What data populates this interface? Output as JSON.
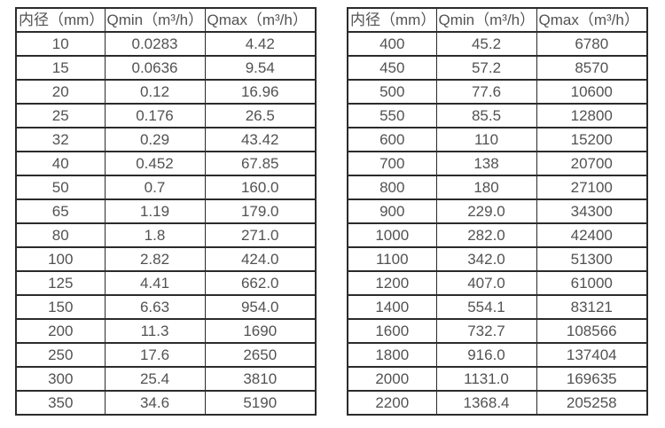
{
  "colors": {
    "border": "#2b2b2b",
    "text": "#525252",
    "background": "#ffffff"
  },
  "tables": [
    {
      "name": "flow-spec-table-small-diameters",
      "headers": [
        "内径（mm）",
        "Qmin（m³/h）",
        "Qmax（m³/h）"
      ],
      "rows": [
        [
          "10",
          "0.0283",
          "4.42"
        ],
        [
          "15",
          "0.0636",
          "9.54"
        ],
        [
          "20",
          "0.12",
          "16.96"
        ],
        [
          "25",
          "0.176",
          "26.5"
        ],
        [
          "32",
          "0.29",
          "43.42"
        ],
        [
          "40",
          "0.452",
          "67.85"
        ],
        [
          "50",
          "0.7",
          "160.0"
        ],
        [
          "65",
          "1.19",
          "179.0"
        ],
        [
          "80",
          "1.8",
          "271.0"
        ],
        [
          "100",
          "2.82",
          "424.0"
        ],
        [
          "125",
          "4.41",
          "662.0"
        ],
        [
          "150",
          "6.63",
          "954.0"
        ],
        [
          "200",
          "11.3",
          "1690"
        ],
        [
          "250",
          "17.6",
          "2650"
        ],
        [
          "300",
          "25.4",
          "3810"
        ],
        [
          "350",
          "34.6",
          "5190"
        ]
      ]
    },
    {
      "name": "flow-spec-table-large-diameters",
      "headers": [
        "内径（mm）",
        "Qmin（m³/h）",
        "Qmax（m³/h）"
      ],
      "rows": [
        [
          "400",
          "45.2",
          "6780"
        ],
        [
          "450",
          "57.2",
          "8570"
        ],
        [
          "500",
          "77.6",
          "10600"
        ],
        [
          "550",
          "85.5",
          "12800"
        ],
        [
          "600",
          "110",
          "15200"
        ],
        [
          "700",
          "138",
          "20700"
        ],
        [
          "800",
          "180",
          "27100"
        ],
        [
          "900",
          "229.0",
          "34300"
        ],
        [
          "1000",
          "282.0",
          "42400"
        ],
        [
          "1100",
          "342.0",
          "51300"
        ],
        [
          "1200",
          "407.0",
          "61000"
        ],
        [
          "1400",
          "554.1",
          "83121"
        ],
        [
          "1600",
          "732.7",
          "108566"
        ],
        [
          "1800",
          "916.0",
          "137404"
        ],
        [
          "2000",
          "1131.0",
          "169635"
        ],
        [
          "2200",
          "1368.4",
          "205258"
        ]
      ]
    }
  ]
}
